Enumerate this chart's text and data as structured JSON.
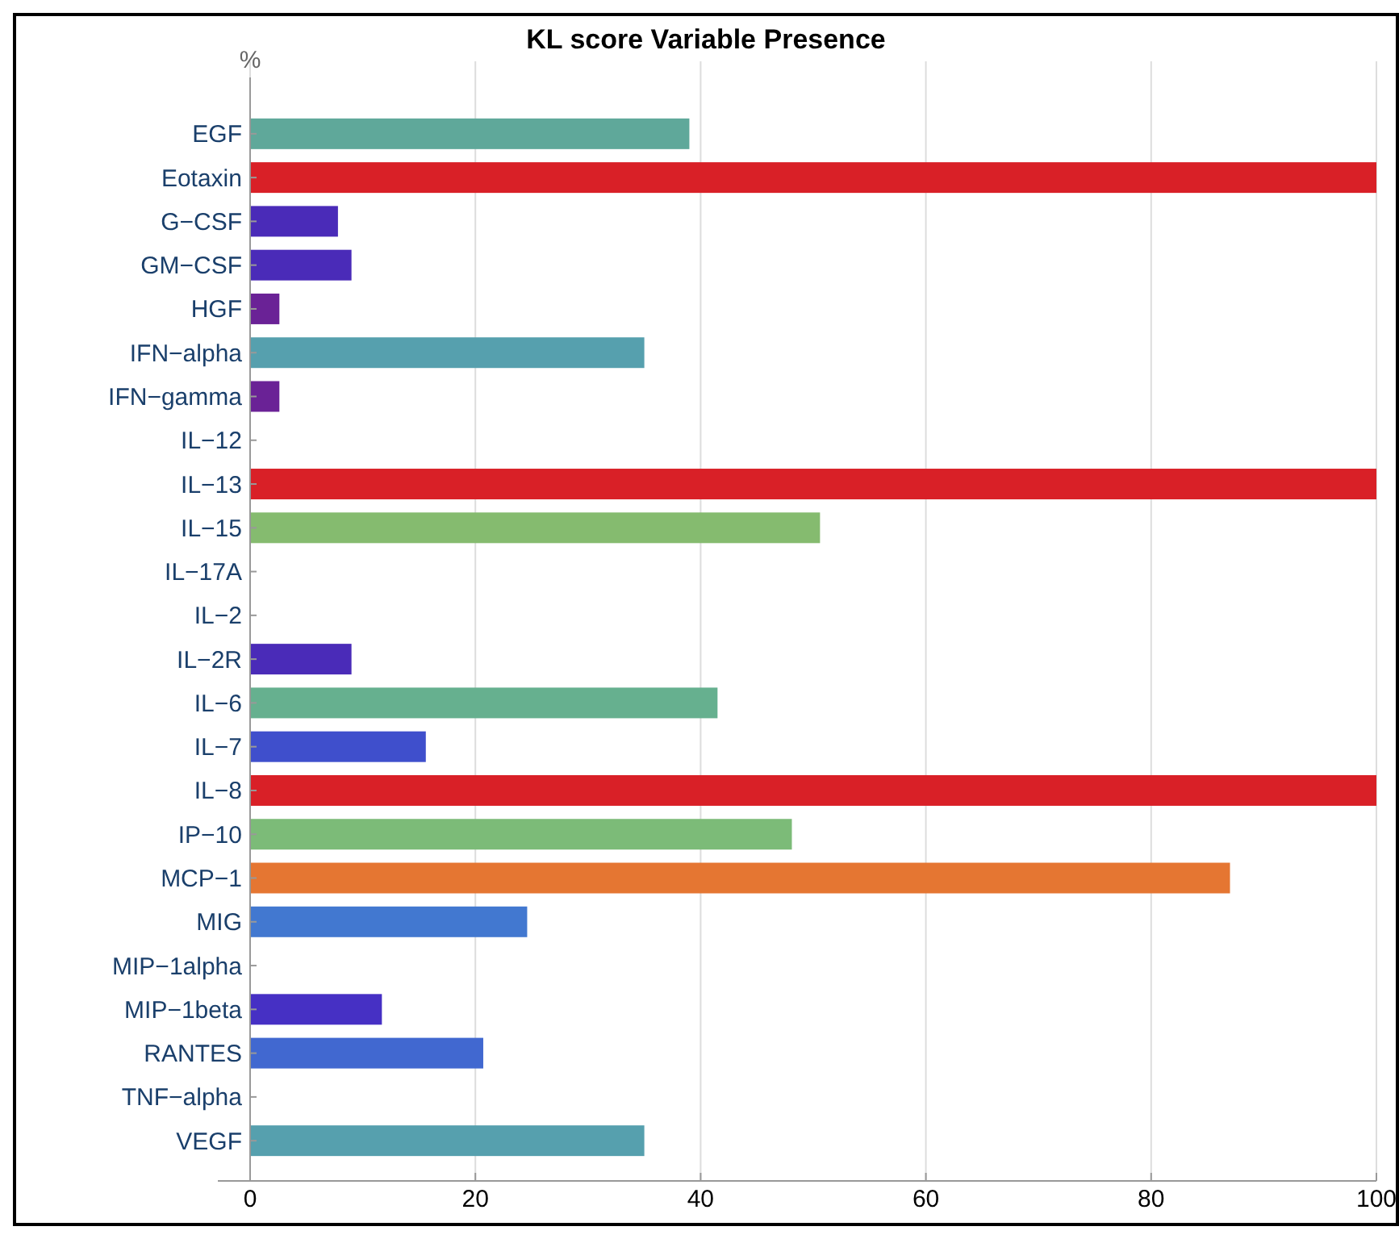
{
  "chart_data": {
    "type": "bar",
    "orientation": "horizontal",
    "title": "KL score Variable Presence",
    "xlabel": "%",
    "categories": [
      "EGF",
      "Eotaxin",
      "G−CSF",
      "GM−CSF",
      "HGF",
      "IFN−alpha",
      "IFN−gamma",
      "IL−12",
      "IL−13",
      "IL−15",
      "IL−17A",
      "IL−2",
      "IL−2R",
      "IL−6",
      "IL−7",
      "IL−8",
      "IP−10",
      "MCP−1",
      "MIG",
      "MIP−1alpha",
      "MIP−1beta",
      "RANTES",
      "TNF−alpha",
      "VEGF"
    ],
    "values": [
      39,
      100,
      7.8,
      9,
      2.6,
      35,
      2.6,
      0,
      100,
      50.6,
      0,
      0,
      9,
      41.5,
      15.6,
      100,
      48.1,
      87,
      24.6,
      0,
      11.7,
      20.7,
      0,
      35
    ],
    "colors": [
      "#5fa89a",
      "#d92027",
      "#4a2bb8",
      "#4a2bb8",
      "#6a2296",
      "#56a0ae",
      "#6a2296",
      "#6a2296",
      "#d92027",
      "#85bb6f",
      "#4a2bb8",
      "#4a2bb8",
      "#4a2bb8",
      "#66b08f",
      "#3f4fcc",
      "#d92027",
      "#7cbb78",
      "#e57632",
      "#4278d0",
      "#4a2bb8",
      "#4630c4",
      "#4168d0",
      "#4a2bb8",
      "#56a0ae"
    ],
    "xlim": [
      0,
      100
    ],
    "xticks": [
      0,
      20,
      40,
      60,
      80,
      100
    ],
    "grid": "x"
  }
}
